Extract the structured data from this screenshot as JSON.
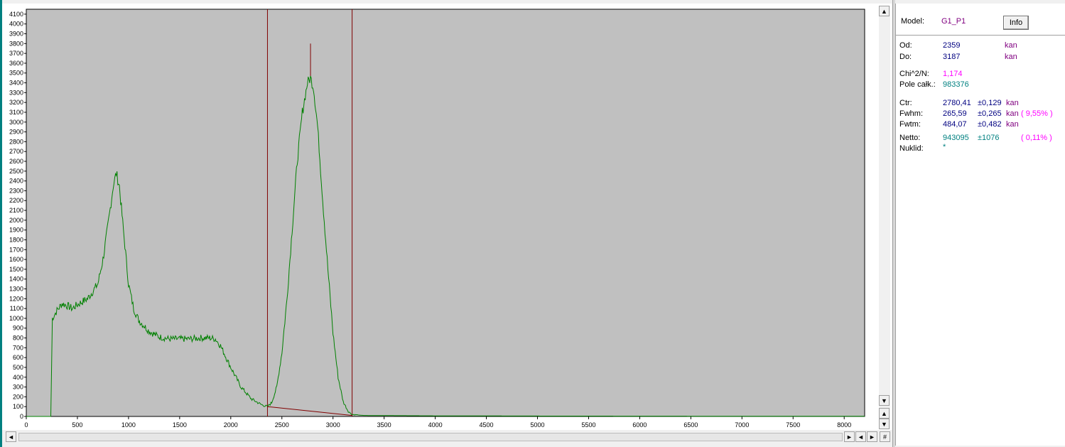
{
  "info": {
    "model_label": "Model:",
    "model_value": "G1_P1",
    "info_button": "Info",
    "od_label": "Od:",
    "od_value": "2359",
    "od_unit": "kan",
    "do_label": "Do:",
    "do_value": "3187",
    "do_unit": "kan",
    "chi_label": "Chi^2/N:",
    "chi_value": "1,174",
    "pole_label": "Pole całk.:",
    "pole_value": "983376",
    "ctr_label": "Ctr:",
    "ctr_value": "2780,41",
    "ctr_err": "±0,129",
    "ctr_unit": "kan",
    "fwhm_label": "Fwhm:",
    "fwhm_value": "265,59",
    "fwhm_err": "±0,265",
    "fwhm_unit": "kan",
    "fwhm_pct": "( 9,55% )",
    "fwtm_label": "Fwtm:",
    "fwtm_value": "484,07",
    "fwtm_err": "±0,482",
    "fwtm_unit": "kan",
    "netto_label": "Netto:",
    "netto_value": "943095",
    "netto_err": "±1076",
    "netto_pct": "( 0,11% )",
    "nuklid_label": "Nuklid:",
    "nuklid_value": "*"
  },
  "scroll": {
    "up": "▲",
    "down": "▼",
    "left": "◄",
    "right": "►",
    "hash": "#"
  },
  "chart_data": {
    "type": "line",
    "xlim": [
      0,
      8200
    ],
    "ylim": [
      0,
      4150
    ],
    "xticks": [
      0,
      500,
      1000,
      1500,
      2000,
      2500,
      3000,
      3500,
      4000,
      4500,
      5000,
      5500,
      6000,
      6500,
      7000,
      7500,
      8000
    ],
    "yticks": [
      0,
      100,
      200,
      300,
      400,
      500,
      600,
      700,
      800,
      900,
      1000,
      1100,
      1200,
      1300,
      1400,
      1500,
      1600,
      1700,
      1800,
      1900,
      2000,
      2100,
      2200,
      2300,
      2400,
      2500,
      2600,
      2700,
      2800,
      2900,
      3000,
      3100,
      3200,
      3300,
      3400,
      3500,
      3600,
      3700,
      3800,
      3900,
      4000,
      4100
    ],
    "roi": [
      2359,
      3187
    ],
    "centroid": {
      "x": 2780,
      "y_top": 3800
    },
    "background_line": [
      [
        2359,
        100
      ],
      [
        3187,
        10
      ]
    ],
    "series": [
      {
        "color": "#008000",
        "points": [
          [
            0,
            0
          ],
          [
            240,
            0
          ],
          [
            255,
            1000
          ],
          [
            300,
            1080
          ],
          [
            350,
            1150
          ],
          [
            400,
            1130
          ],
          [
            450,
            1100
          ],
          [
            500,
            1140
          ],
          [
            600,
            1200
          ],
          [
            700,
            1350
          ],
          [
            750,
            1600
          ],
          [
            800,
            1950
          ],
          [
            850,
            2350
          ],
          [
            880,
            2480
          ],
          [
            910,
            2350
          ],
          [
            950,
            1900
          ],
          [
            1000,
            1350
          ],
          [
            1050,
            1100
          ],
          [
            1100,
            980
          ],
          [
            1200,
            870
          ],
          [
            1300,
            810
          ],
          [
            1400,
            790
          ],
          [
            1500,
            790
          ],
          [
            1600,
            790
          ],
          [
            1700,
            800
          ],
          [
            1800,
            800
          ],
          [
            1850,
            790
          ],
          [
            1900,
            720
          ],
          [
            2000,
            500
          ],
          [
            2100,
            300
          ],
          [
            2200,
            180
          ],
          [
            2300,
            120
          ],
          [
            2359,
            100
          ],
          [
            2400,
            140
          ],
          [
            2450,
            300
          ],
          [
            2500,
            650
          ],
          [
            2550,
            1200
          ],
          [
            2600,
            1900
          ],
          [
            2650,
            2600
          ],
          [
            2700,
            3100
          ],
          [
            2750,
            3400
          ],
          [
            2780,
            3450
          ],
          [
            2810,
            3350
          ],
          [
            2850,
            2950
          ],
          [
            2900,
            2200
          ],
          [
            2950,
            1500
          ],
          [
            3000,
            850
          ],
          [
            3050,
            400
          ],
          [
            3100,
            150
          ],
          [
            3150,
            50
          ],
          [
            3187,
            20
          ],
          [
            3300,
            10
          ],
          [
            4000,
            6
          ],
          [
            5000,
            4
          ],
          [
            6000,
            3
          ],
          [
            7000,
            2
          ],
          [
            8200,
            2
          ]
        ]
      }
    ]
  }
}
